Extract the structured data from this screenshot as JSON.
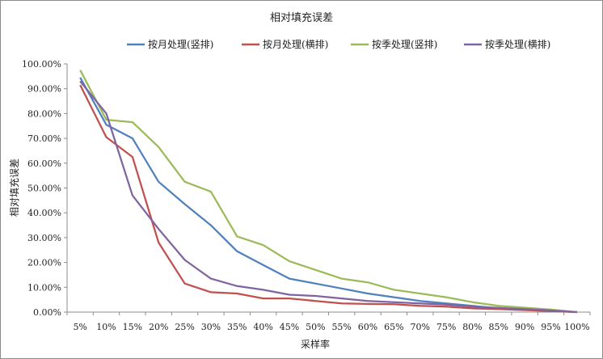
{
  "chart_data": {
    "type": "line",
    "title": "相对填充误差",
    "xlabel": "采样率",
    "ylabel": "相对填充误差",
    "categories": [
      "5%",
      "10%",
      "15%",
      "20%",
      "25%",
      "30%",
      "35%",
      "40%",
      "45%",
      "50%",
      "55%",
      "60%",
      "65%",
      "70%",
      "75%",
      "80%",
      "85%",
      "90%",
      "95%",
      "100%"
    ],
    "ylim": [
      0,
      100
    ],
    "yticks": [
      "0.00%",
      "10.00%",
      "20.00%",
      "30.00%",
      "40.00%",
      "50.00%",
      "60.00%",
      "70.00%",
      "80.00%",
      "90.00%",
      "100.00%"
    ],
    "grid": false,
    "legend_position": "top",
    "series": [
      {
        "name": "按月处理(竖排)",
        "color": "#4f81bd",
        "values": [
          94.5,
          75.5,
          70.0,
          52.5,
          43.5,
          35.0,
          24.5,
          19.0,
          13.5,
          11.5,
          9.5,
          7.5,
          6.0,
          4.5,
          3.5,
          2.5,
          1.5,
          1.0,
          0.5,
          0.0
        ]
      },
      {
        "name": "按月处理(横排)",
        "color": "#c0504d",
        "values": [
          91.5,
          70.5,
          62.5,
          28.0,
          11.5,
          8.0,
          7.5,
          5.5,
          5.5,
          4.5,
          3.5,
          3.3,
          3.2,
          2.5,
          2.2,
          1.5,
          1.2,
          0.8,
          0.4,
          0.0
        ]
      },
      {
        "name": "按季处理(竖排)",
        "color": "#9bbb59",
        "values": [
          97.5,
          77.5,
          76.5,
          66.5,
          52.5,
          48.5,
          30.5,
          27.0,
          20.5,
          17.0,
          13.5,
          12.0,
          9.0,
          7.5,
          6.0,
          4.0,
          2.5,
          1.8,
          1.0,
          0.0
        ]
      },
      {
        "name": "按季处理(横排)",
        "color": "#8064a2",
        "values": [
          93.0,
          80.0,
          47.0,
          33.5,
          21.0,
          13.5,
          10.5,
          9.0,
          7.0,
          6.5,
          5.5,
          4.5,
          4.0,
          3.5,
          3.0,
          2.2,
          1.7,
          1.2,
          0.7,
          0.0
        ]
      }
    ]
  }
}
